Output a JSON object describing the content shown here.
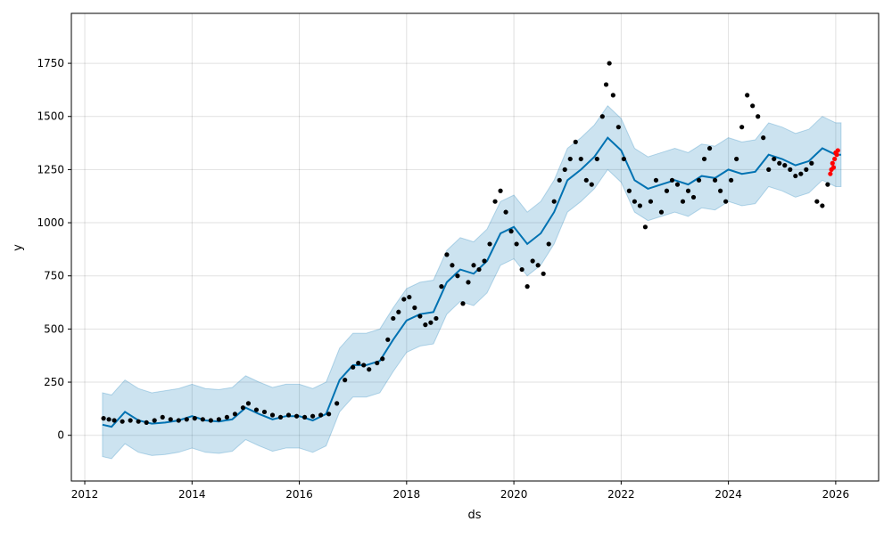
{
  "chart_data": {
    "type": "line",
    "xlabel": "ds",
    "ylabel": "y",
    "xlim": [
      2011.75,
      2026.8
    ],
    "ylim": [
      -215,
      1985
    ],
    "x_ticks": [
      2012,
      2014,
      2016,
      2018,
      2020,
      2022,
      2024,
      2026
    ],
    "x_tick_labels": [
      "2012",
      "2014",
      "2016",
      "2018",
      "2020",
      "2022",
      "2024",
      "2026"
    ],
    "y_ticks": [
      0,
      250,
      500,
      750,
      1000,
      1250,
      1500,
      1750
    ],
    "y_tick_labels": [
      "0",
      "250",
      "500",
      "750",
      "1000",
      "1250",
      "1500",
      "1750"
    ],
    "grid": true,
    "colors": {
      "forecast": "#0072B2",
      "interval": "#0072B2",
      "observed": "#000000",
      "recent": "#ff0000"
    },
    "series": [
      {
        "kind": "forecast-line",
        "x": [
          2012.33,
          2012.5,
          2012.75,
          2013.0,
          2013.25,
          2013.5,
          2013.75,
          2014.0,
          2014.25,
          2014.5,
          2014.75,
          2015.0,
          2015.25,
          2015.5,
          2015.75,
          2016.0,
          2016.25,
          2016.5,
          2016.75,
          2017.0,
          2017.25,
          2017.5,
          2017.75,
          2018.0,
          2018.25,
          2018.5,
          2018.75,
          2019.0,
          2019.25,
          2019.5,
          2019.75,
          2020.0,
          2020.25,
          2020.5,
          2020.75,
          2021.0,
          2021.25,
          2021.5,
          2021.75,
          2022.0,
          2022.25,
          2022.5,
          2022.75,
          2023.0,
          2023.25,
          2023.5,
          2023.75,
          2024.0,
          2024.25,
          2024.5,
          2024.75,
          2025.0,
          2025.25,
          2025.5,
          2025.75,
          2026.0,
          2026.1
        ],
        "y": [
          50,
          40,
          110,
          70,
          55,
          60,
          70,
          90,
          70,
          65,
          75,
          130,
          100,
          75,
          90,
          90,
          70,
          100,
          260,
          330,
          330,
          350,
          450,
          540,
          570,
          580,
          720,
          780,
          760,
          820,
          950,
          980,
          900,
          950,
          1050,
          1200,
          1250,
          1310,
          1400,
          1340,
          1200,
          1160,
          1180,
          1200,
          1180,
          1220,
          1210,
          1250,
          1230,
          1240,
          1320,
          1300,
          1270,
          1290,
          1350,
          1320,
          1320
        ]
      },
      {
        "kind": "uncertainty-upper",
        "x": [
          2012.33,
          2012.5,
          2012.75,
          2013.0,
          2013.25,
          2013.5,
          2013.75,
          2014.0,
          2014.25,
          2014.5,
          2014.75,
          2015.0,
          2015.25,
          2015.5,
          2015.75,
          2016.0,
          2016.25,
          2016.5,
          2016.75,
          2017.0,
          2017.25,
          2017.5,
          2017.75,
          2018.0,
          2018.25,
          2018.5,
          2018.75,
          2019.0,
          2019.25,
          2019.5,
          2019.75,
          2020.0,
          2020.25,
          2020.5,
          2020.75,
          2021.0,
          2021.25,
          2021.5,
          2021.75,
          2022.0,
          2022.25,
          2022.5,
          2022.75,
          2023.0,
          2023.25,
          2023.5,
          2023.75,
          2024.0,
          2024.25,
          2024.5,
          2024.75,
          2025.0,
          2025.25,
          2025.5,
          2025.75,
          2026.0,
          2026.1
        ],
        "y": [
          200,
          190,
          260,
          220,
          200,
          210,
          220,
          240,
          220,
          215,
          225,
          280,
          250,
          225,
          240,
          240,
          220,
          250,
          410,
          480,
          480,
          500,
          600,
          690,
          720,
          730,
          870,
          930,
          910,
          970,
          1100,
          1130,
          1050,
          1100,
          1200,
          1350,
          1400,
          1460,
          1550,
          1490,
          1350,
          1310,
          1330,
          1350,
          1330,
          1370,
          1360,
          1400,
          1380,
          1390,
          1470,
          1450,
          1420,
          1440,
          1500,
          1470,
          1470
        ]
      },
      {
        "kind": "uncertainty-lower",
        "x": [
          2012.33,
          2012.5,
          2012.75,
          2013.0,
          2013.25,
          2013.5,
          2013.75,
          2014.0,
          2014.25,
          2014.5,
          2014.75,
          2015.0,
          2015.25,
          2015.5,
          2015.75,
          2016.0,
          2016.25,
          2016.5,
          2016.75,
          2017.0,
          2017.25,
          2017.5,
          2017.75,
          2018.0,
          2018.25,
          2018.5,
          2018.75,
          2019.0,
          2019.25,
          2019.5,
          2019.75,
          2020.0,
          2020.25,
          2020.5,
          2020.75,
          2021.0,
          2021.25,
          2021.5,
          2021.75,
          2022.0,
          2022.25,
          2022.5,
          2022.75,
          2023.0,
          2023.25,
          2023.5,
          2023.75,
          2024.0,
          2024.25,
          2024.5,
          2024.75,
          2025.0,
          2025.25,
          2025.5,
          2025.75,
          2026.0,
          2026.1
        ],
        "y": [
          -100,
          -110,
          -40,
          -80,
          -95,
          -90,
          -80,
          -60,
          -80,
          -85,
          -75,
          -20,
          -50,
          -75,
          -60,
          -60,
          -80,
          -50,
          110,
          180,
          180,
          200,
          300,
          390,
          420,
          430,
          570,
          630,
          610,
          670,
          800,
          830,
          750,
          800,
          900,
          1050,
          1100,
          1160,
          1250,
          1190,
          1050,
          1010,
          1030,
          1050,
          1030,
          1070,
          1060,
          1100,
          1080,
          1090,
          1170,
          1150,
          1120,
          1140,
          1200,
          1170,
          1170
        ]
      },
      {
        "kind": "observed-points",
        "x": [
          2012.35,
          2012.45,
          2012.55,
          2012.7,
          2012.85,
          2013.0,
          2013.15,
          2013.3,
          2013.45,
          2013.6,
          2013.75,
          2013.9,
          2014.05,
          2014.2,
          2014.35,
          2014.5,
          2014.65,
          2014.8,
          2014.95,
          2015.05,
          2015.2,
          2015.35,
          2015.5,
          2015.65,
          2015.8,
          2015.95,
          2016.1,
          2016.25,
          2016.4,
          2016.55,
          2016.7,
          2016.85,
          2017.0,
          2017.1,
          2017.2,
          2017.3,
          2017.45,
          2017.55,
          2017.65,
          2017.75,
          2017.85,
          2017.95,
          2018.05,
          2018.15,
          2018.25,
          2018.35,
          2018.45,
          2018.55,
          2018.65,
          2018.75,
          2018.85,
          2018.95,
          2019.05,
          2019.15,
          2019.25,
          2019.35,
          2019.45,
          2019.55,
          2019.65,
          2019.75,
          2019.85,
          2019.95,
          2020.05,
          2020.15,
          2020.25,
          2020.35,
          2020.45,
          2020.55,
          2020.65,
          2020.75,
          2020.85,
          2020.95,
          2021.05,
          2021.15,
          2021.25,
          2021.35,
          2021.45,
          2021.55,
          2021.65,
          2021.72,
          2021.78,
          2021.85,
          2021.95,
          2022.05,
          2022.15,
          2022.25,
          2022.35,
          2022.45,
          2022.55,
          2022.65,
          2022.75,
          2022.85,
          2022.95,
          2023.05,
          2023.15,
          2023.25,
          2023.35,
          2023.45,
          2023.55,
          2023.65,
          2023.75,
          2023.85,
          2023.95,
          2024.05,
          2024.15,
          2024.25,
          2024.35,
          2024.45,
          2024.55,
          2024.65,
          2024.75,
          2024.85,
          2024.95,
          2025.05,
          2025.15,
          2025.25,
          2025.35,
          2025.45,
          2025.55,
          2025.65,
          2025.75,
          2025.85
        ],
        "y": [
          80,
          75,
          70,
          65,
          70,
          65,
          60,
          70,
          85,
          75,
          70,
          75,
          80,
          75,
          70,
          75,
          85,
          100,
          130,
          150,
          120,
          110,
          95,
          85,
          95,
          90,
          85,
          90,
          95,
          100,
          150,
          260,
          320,
          340,
          330,
          310,
          340,
          360,
          450,
          550,
          580,
          640,
          650,
          600,
          560,
          520,
          530,
          550,
          700,
          850,
          800,
          750,
          620,
          720,
          800,
          780,
          820,
          900,
          1100,
          1150,
          1050,
          960,
          900,
          780,
          700,
          820,
          800,
          760,
          900,
          1100,
          1200,
          1250,
          1300,
          1380,
          1300,
          1200,
          1180,
          1300,
          1500,
          1650,
          1750,
          1600,
          1450,
          1300,
          1150,
          1100,
          1080,
          980,
          1100,
          1200,
          1050,
          1150,
          1200,
          1180,
          1100,
          1150,
          1120,
          1200,
          1300,
          1350,
          1200,
          1150,
          1100,
          1200,
          1300,
          1450,
          1600,
          1550,
          1500,
          1400,
          1250,
          1300,
          1280,
          1270,
          1250,
          1220,
          1230,
          1250,
          1280,
          1100,
          1080,
          1180
        ]
      },
      {
        "kind": "recent-points",
        "x": [
          2025.9,
          2025.92,
          2025.94,
          2025.96,
          2025.98,
          2026.0,
          2026.02,
          2026.04
        ],
        "y": [
          1230,
          1250,
          1280,
          1260,
          1300,
          1330,
          1320,
          1340
        ]
      }
    ]
  }
}
